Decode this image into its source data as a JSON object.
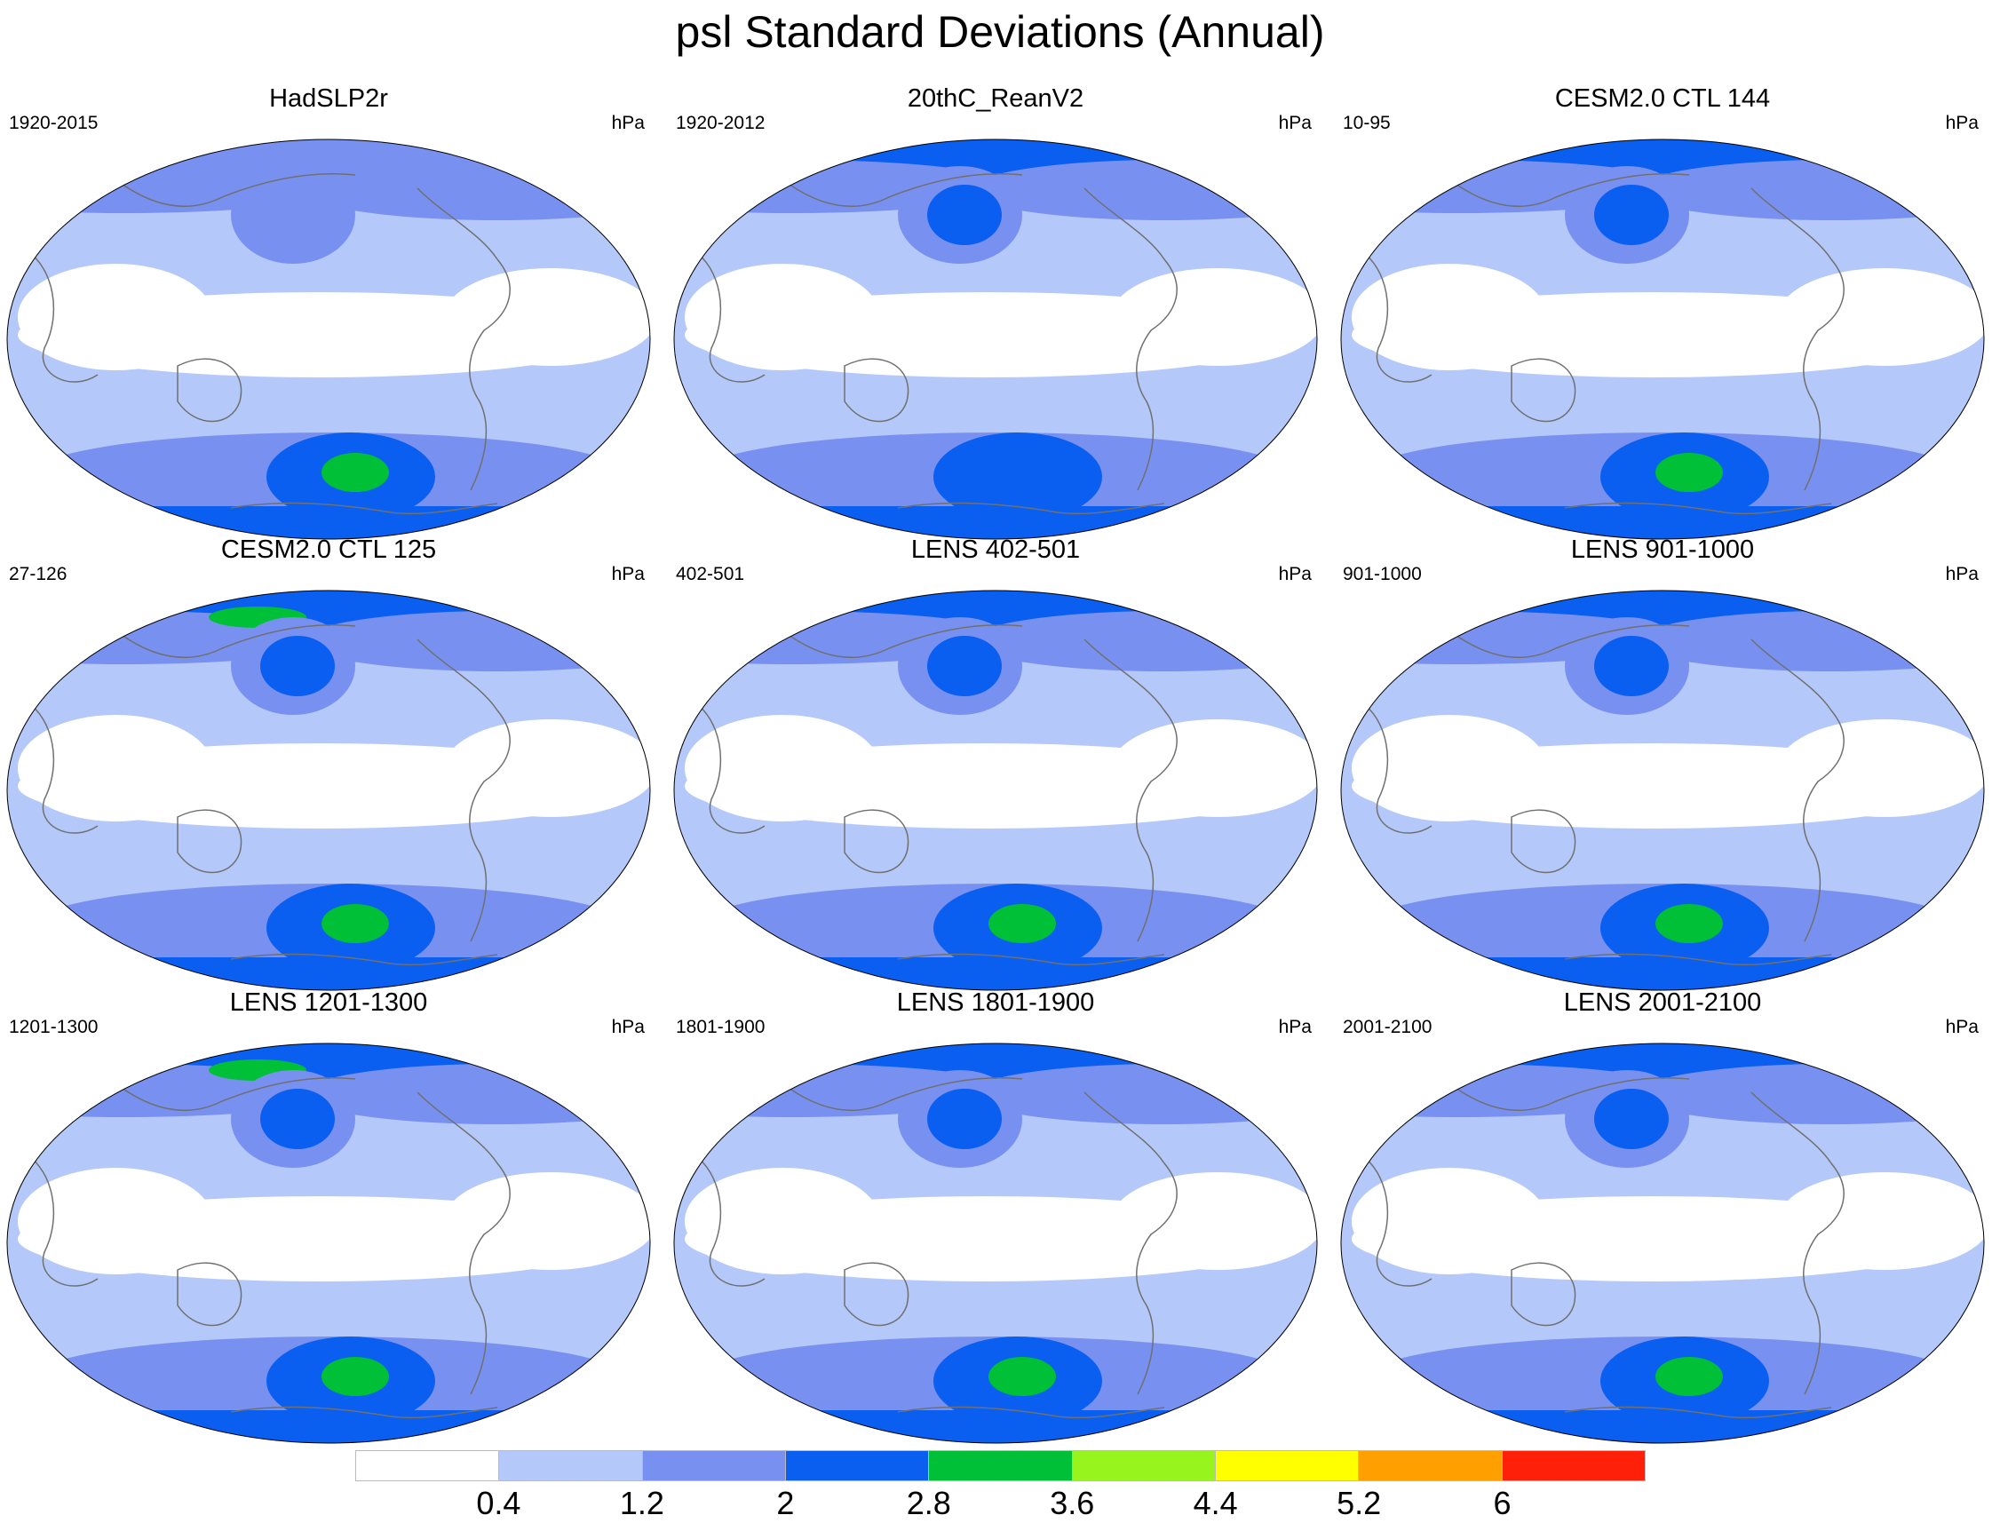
{
  "title": "psl Standard Deviations (Annual)",
  "units": "hPa",
  "panels": [
    {
      "title": "HadSLP2r",
      "period": "1920-2015",
      "southern_max": "green",
      "arctic_max": "light-blue"
    },
    {
      "title": "20thC_ReanV2",
      "period": "1920-2012",
      "southern_max": "dark-blue",
      "arctic_max": "dark-blue"
    },
    {
      "title": "CESM2.0 CTL 144",
      "period": "10-95",
      "southern_max": "green",
      "arctic_max": "dark-blue"
    },
    {
      "title": "CESM2.0 CTL 125",
      "period": "27-126",
      "southern_max": "green",
      "arctic_max": "green"
    },
    {
      "title": "LENS 402-501",
      "period": "402-501",
      "southern_max": "green",
      "arctic_max": "dark-blue"
    },
    {
      "title": "LENS 901-1000",
      "period": "901-1000",
      "southern_max": "green",
      "arctic_max": "dark-blue"
    },
    {
      "title": "LENS 1201-1300",
      "period": "1201-1300",
      "southern_max": "green",
      "arctic_max": "green"
    },
    {
      "title": "LENS 1801-1900",
      "period": "1801-1900",
      "southern_max": "green",
      "arctic_max": "dark-blue"
    },
    {
      "title": "LENS 2001-2100",
      "period": "2001-2100",
      "southern_max": "green",
      "arctic_max": "dark-blue"
    }
  ],
  "colorbar": {
    "colors": [
      "#ffffff",
      "#b4c8fa",
      "#7890f0",
      "#0a5ff0",
      "#00c037",
      "#97f51d",
      "#ffff00",
      "#ffa000",
      "#ff200a"
    ],
    "labels": [
      "0.4",
      "1.2",
      "2",
      "2.8",
      "3.6",
      "4.4",
      "5.2",
      "6"
    ]
  }
}
